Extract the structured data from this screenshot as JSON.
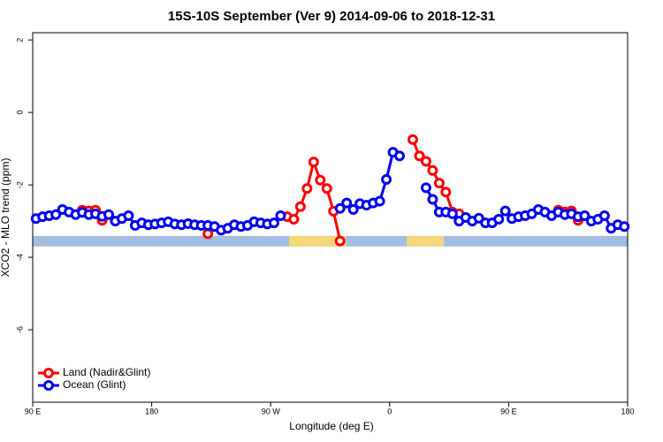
{
  "chart_data": {
    "type": "line",
    "title": "15S-10S September (Ver 9)   2014-09-06 to 2018-12-31",
    "x_label": "Longitude (deg E)",
    "y_label": "XCO2 - MLO trend (ppm)",
    "x": [
      92.5,
      97.5,
      102.5,
      107.5,
      112.5,
      117.5,
      122.5,
      127.5,
      132.5,
      137.5,
      142.5,
      147.5,
      152.5,
      157.5,
      162.5,
      167.5,
      172.5,
      177.5,
      182.5,
      187.5,
      192.5,
      197.5,
      202.5,
      207.5,
      212.5,
      217.5,
      222.5,
      227.5,
      232.5,
      237.5,
      242.5,
      247.5,
      252.5,
      257.5,
      262.5,
      267.5,
      272.5,
      277.5,
      282.5,
      287.5,
      292.5,
      297.5,
      302.5,
      307.5,
      312.5,
      317.5,
      322.5,
      327.5,
      332.5,
      337.5,
      342.5,
      347.5,
      352.5,
      357.5,
      362.5,
      367.5,
      372.5,
      377.5,
      382.5,
      387.5,
      392.5,
      397.5,
      402.5,
      407.5,
      412.5,
      417.5,
      422.5,
      427.5,
      432.5,
      437.5,
      442.5,
      447.5,
      452.5,
      457.5,
      462.5,
      467.5,
      472.5,
      477.5,
      482.5,
      487.5,
      492.5,
      497.5,
      502.5,
      507.5,
      512.5,
      517.5,
      522.5,
      527.5,
      532.5,
      537.5
    ],
    "series": [
      {
        "name": "Land (Nadir&Glint)",
        "color": "#ff0000",
        "values": [
          null,
          null,
          null,
          null,
          null,
          null,
          null,
          -2.7,
          -2.72,
          -2.7,
          -2.98,
          null,
          null,
          null,
          null,
          null,
          null,
          null,
          null,
          null,
          null,
          null,
          null,
          null,
          null,
          null,
          -3.35,
          null,
          null,
          null,
          null,
          null,
          null,
          null,
          null,
          null,
          null,
          null,
          -2.88,
          -2.95,
          -2.6,
          -2.1,
          -1.37,
          -1.87,
          -2.1,
          -2.73,
          -3.55,
          null,
          null,
          null,
          null,
          null,
          null,
          null,
          null,
          null,
          null,
          -0.75,
          -1.2,
          -1.35,
          -1.6,
          -1.95,
          -2.2,
          -2.75,
          -2.8,
          null,
          null,
          null,
          null,
          null,
          null,
          null,
          null,
          null,
          null,
          null,
          null,
          null,
          null,
          -2.7,
          -2.75,
          -2.72,
          -2.98,
          null,
          null,
          null,
          null,
          null,
          null,
          null
        ]
      },
      {
        "name": "Ocean (Glint)",
        "color": "#0000ee",
        "values": [
          -2.93,
          -2.88,
          -2.85,
          -2.82,
          -2.68,
          -2.75,
          -2.82,
          -2.76,
          -2.82,
          -2.8,
          -2.87,
          -2.82,
          -3.0,
          -2.93,
          -2.85,
          -3.12,
          -3.05,
          -3.1,
          -3.08,
          -3.05,
          -3.02,
          -3.08,
          -3.1,
          -3.07,
          -3.1,
          -3.12,
          -3.12,
          -3.15,
          -3.25,
          -3.2,
          -3.1,
          -3.15,
          -3.12,
          -3.02,
          -3.05,
          -3.08,
          -3.05,
          -2.85,
          null,
          null,
          null,
          null,
          null,
          null,
          null,
          null,
          -2.65,
          -2.5,
          -2.68,
          -2.52,
          -2.56,
          -2.5,
          -2.45,
          -1.85,
          -1.1,
          -1.2,
          null,
          null,
          null,
          -2.08,
          -2.4,
          -2.75,
          -2.75,
          -2.8,
          -3.0,
          -2.9,
          -3.0,
          -2.92,
          -3.05,
          -3.05,
          -2.95,
          -2.72,
          -2.93,
          -2.88,
          -2.85,
          -2.8,
          -2.68,
          -2.75,
          -2.85,
          -2.75,
          -2.82,
          -2.8,
          -2.88,
          -2.85,
          -3.0,
          -2.95,
          -2.85,
          -3.2,
          -3.1,
          -3.15
        ]
      }
    ],
    "surface_band": {
      "ylim": [
        -3.7,
        -3.41
      ],
      "ocean_color": "#a3bde0",
      "land_color": "#f8d77a",
      "land_ranges": [
        [
          284,
          327
        ],
        [
          373,
          401
        ]
      ]
    },
    "xlim": [
      90,
      540
    ],
    "xticks": [
      {
        "value": 90,
        "label": "90 E"
      },
      180,
      {
        "value": 270,
        "label": "90 W"
      },
      {
        "value": 360,
        "label": "0"
      },
      {
        "value": 450,
        "label": "90 E"
      },
      {
        "value": 540,
        "label": "180"
      }
    ],
    "ylim": [
      -8,
      2.2
    ],
    "yticks": [
      2,
      0,
      -2,
      -4,
      -6
    ],
    "legend": "bottom-left"
  }
}
